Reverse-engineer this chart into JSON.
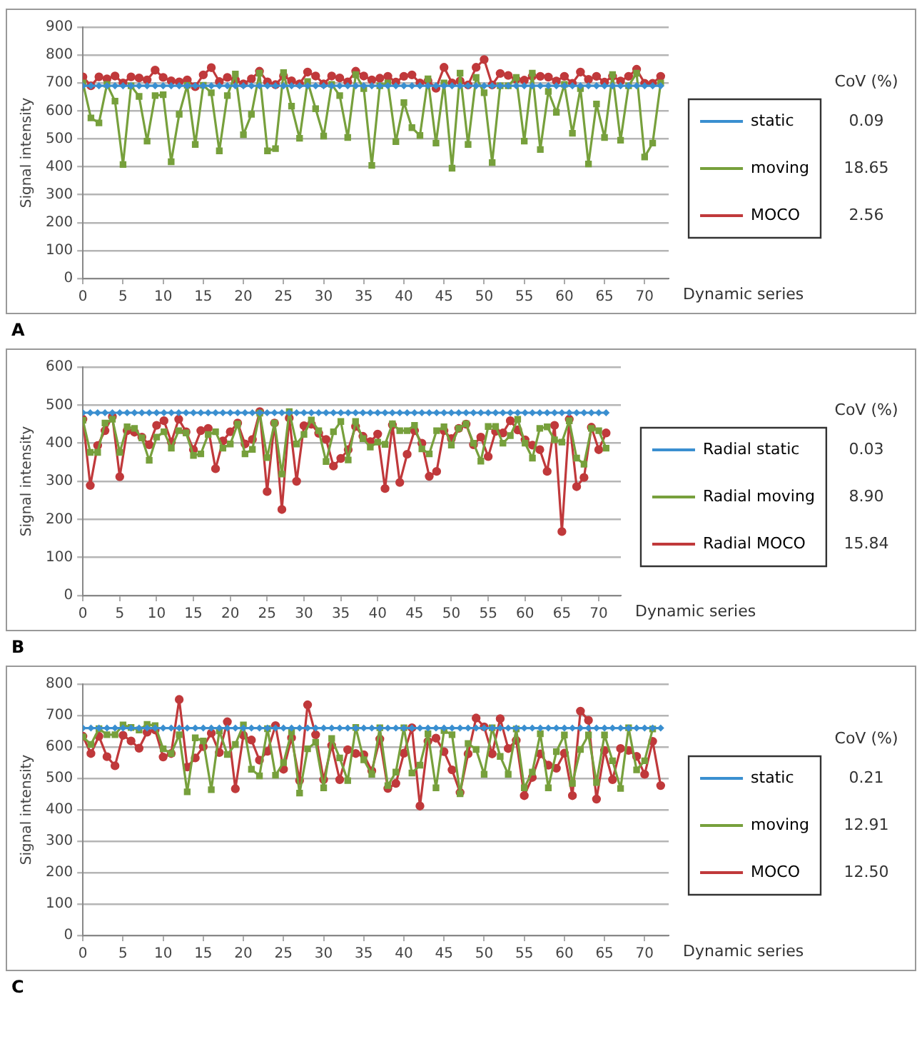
{
  "chart_data": [
    {
      "type": "line",
      "ylabel": "Signal intensity",
      "xlabel": "Dynamic series",
      "xlim": [
        0,
        73
      ],
      "xticks": [
        0,
        5,
        10,
        15,
        20,
        25,
        30,
        35,
        40,
        45,
        50,
        55,
        60,
        65,
        70
      ],
      "ylim": [
        0,
        900
      ],
      "yticks": [
        0,
        100,
        200,
        300,
        400,
        500,
        600,
        700,
        800,
        900
      ],
      "grid": "y",
      "legend": "right",
      "annotations": [
        "CoV (%)",
        "0.09",
        "18.65",
        "2.56",
        "A"
      ],
      "x": [
        0,
        1,
        2,
        3,
        4,
        5,
        6,
        7,
        8,
        9,
        10,
        11,
        12,
        13,
        14,
        15,
        16,
        17,
        18,
        19,
        20,
        21,
        22,
        23,
        24,
        25,
        26,
        27,
        28,
        29,
        30,
        31,
        32,
        33,
        34,
        35,
        36,
        37,
        38,
        39,
        40,
        41,
        42,
        43,
        44,
        45,
        46,
        47,
        48,
        49,
        50,
        51,
        52,
        53,
        54,
        55,
        56,
        57,
        58,
        59,
        60,
        61,
        62,
        63,
        64,
        65,
        66,
        67,
        68,
        69,
        70,
        71,
        72
      ],
      "series": [
        {
          "name": "static",
          "color": "#3a8fd0",
          "marker": "diamond",
          "values": [
            690,
            690,
            690,
            690,
            690,
            690,
            690,
            690,
            690,
            690,
            690,
            690,
            690,
            690,
            690,
            690,
            690,
            690,
            690,
            690,
            690,
            690,
            690,
            690,
            690,
            690,
            690,
            690,
            690,
            690,
            690,
            690,
            690,
            690,
            690,
            690,
            690,
            690,
            690,
            690,
            690,
            690,
            690,
            690,
            690,
            690,
            690,
            690,
            690,
            690,
            690,
            690,
            690,
            690,
            690,
            690,
            690,
            690,
            690,
            690,
            690,
            690,
            690,
            690,
            690,
            690,
            690,
            690,
            690,
            690,
            690,
            690,
            690
          ]
        },
        {
          "name": "moving",
          "color": "#77a03c",
          "marker": "square",
          "values": [
            700,
            575,
            557,
            695,
            635,
            408,
            690,
            652,
            492,
            655,
            658,
            418,
            588,
            692,
            480,
            692,
            665,
            457,
            655,
            732,
            515,
            588,
            735,
            457,
            465,
            737,
            617,
            502,
            705,
            608,
            510,
            695,
            655,
            505,
            730,
            680,
            405,
            690,
            700,
            490,
            630,
            540,
            512,
            715,
            485,
            700,
            395,
            735,
            480,
            720,
            665,
            415,
            690,
            690,
            720,
            492,
            735,
            462,
            670,
            595,
            695,
            520,
            680,
            410,
            625,
            505,
            730,
            495,
            690,
            735,
            435,
            485,
            700
          ]
        },
        {
          "name": "MOCO",
          "color": "#c0393b",
          "marker": "circle",
          "values": [
            722,
            690,
            722,
            715,
            725,
            700,
            722,
            718,
            711,
            746,
            720,
            708,
            704,
            711,
            687,
            729,
            755,
            705,
            720,
            711,
            697,
            715,
            742,
            704,
            694,
            725,
            708,
            697,
            739,
            725,
            697,
            725,
            718,
            704,
            742,
            725,
            711,
            717,
            724,
            703,
            724,
            729,
            700,
            707,
            681,
            756,
            700,
            707,
            693,
            756,
            784,
            693,
            734,
            727,
            713,
            710,
            724,
            724,
            721,
            707,
            724,
            699,
            739,
            713,
            724,
            703,
            724,
            707,
            724,
            749,
            699,
            699,
            724
          ]
        }
      ]
    },
    {
      "type": "line",
      "ylabel": "Signal intensity",
      "xlabel": "Dynamic series",
      "xlim": [
        0,
        73
      ],
      "xticks": [
        0,
        5,
        10,
        15,
        20,
        25,
        30,
        35,
        40,
        45,
        50,
        55,
        60,
        65,
        70
      ],
      "ylim": [
        0,
        600
      ],
      "yticks": [
        0,
        100,
        200,
        300,
        400,
        500,
        600
      ],
      "grid": "y",
      "legend": "right",
      "annotations": [
        "CoV (%)",
        "0.03",
        "8.90",
        "15.84",
        "B"
      ],
      "x": [
        0,
        1,
        2,
        3,
        4,
        5,
        6,
        7,
        8,
        9,
        10,
        11,
        12,
        13,
        14,
        15,
        16,
        17,
        18,
        19,
        20,
        21,
        22,
        23,
        24,
        25,
        26,
        27,
        28,
        29,
        30,
        31,
        32,
        33,
        34,
        35,
        36,
        37,
        38,
        39,
        40,
        41,
        42,
        43,
        44,
        45,
        46,
        47,
        48,
        49,
        50,
        51,
        52,
        53,
        54,
        55,
        56,
        57,
        58,
        59,
        60,
        61,
        62,
        63,
        64,
        65,
        66,
        67,
        68,
        69,
        70,
        71
      ],
      "series": [
        {
          "name": "Radial static",
          "color": "#3a8fd0",
          "marker": "diamond",
          "values": [
            480,
            480,
            480,
            480,
            480,
            480,
            480,
            480,
            480,
            480,
            480,
            480,
            480,
            480,
            480,
            480,
            480,
            480,
            480,
            480,
            480,
            480,
            480,
            480,
            480,
            480,
            480,
            480,
            480,
            480,
            480,
            480,
            480,
            480,
            480,
            480,
            480,
            480,
            480,
            480,
            480,
            480,
            480,
            480,
            480,
            480,
            480,
            480,
            480,
            480,
            480,
            480,
            480,
            480,
            480,
            480,
            480,
            480,
            480,
            480,
            480,
            480,
            480,
            480,
            480,
            480,
            480,
            480,
            480,
            480,
            480,
            480
          ]
        },
        {
          "name": "Radial moving",
          "color": "#77a03c",
          "marker": "square",
          "values": [
            460,
            376,
            376,
            453,
            463,
            376,
            443,
            439,
            414,
            355,
            416,
            430,
            387,
            433,
            427,
            368,
            372,
            423,
            430,
            387,
            398,
            450,
            372,
            384,
            479,
            362,
            453,
            319,
            483,
            398,
            423,
            461,
            433,
            352,
            430,
            457,
            356,
            457,
            412,
            390,
            403,
            397,
            451,
            433,
            433,
            447,
            385,
            372,
            433,
            443,
            395,
            439,
            451,
            400,
            353,
            444,
            444,
            400,
            420,
            463,
            400,
            361,
            439,
            443,
            409,
            403,
            459,
            361,
            345,
            439,
            433,
            387
          ]
        },
        {
          "name": "Radial MOCO",
          "color": "#c0393b",
          "marker": "circle",
          "values": [
            463,
            289,
            394,
            433,
            470,
            312,
            433,
            429,
            416,
            396,
            447,
            459,
            403,
            463,
            430,
            383,
            433,
            439,
            333,
            406,
            430,
            453,
            398,
            410,
            483,
            273,
            453,
            226,
            466,
            300,
            446,
            450,
            426,
            410,
            340,
            360,
            383,
            444,
            418,
            404,
            424,
            281,
            448,
            297,
            371,
            433,
            400,
            313,
            326,
            433,
            412,
            439,
            450,
            396,
            416,
            365,
            431,
            427,
            459,
            435,
            409,
            395,
            383,
            326,
            447,
            168,
            463,
            286,
            310,
            442,
            383,
            427
          ]
        }
      ]
    },
    {
      "type": "line",
      "ylabel": "Signal intensity",
      "xlabel": "Dynamic series",
      "xlim": [
        0,
        73
      ],
      "xticks": [
        0,
        5,
        10,
        15,
        20,
        25,
        30,
        35,
        40,
        45,
        50,
        55,
        60,
        65,
        70
      ],
      "ylim": [
        0,
        800
      ],
      "yticks": [
        0,
        100,
        200,
        300,
        400,
        500,
        600,
        700,
        800
      ],
      "grid": "y",
      "legend": "right",
      "annotations": [
        "CoV (%)",
        "0.21",
        "12.91",
        "12.50",
        "C"
      ],
      "x": [
        0,
        1,
        2,
        3,
        4,
        5,
        6,
        7,
        8,
        9,
        10,
        11,
        12,
        13,
        14,
        15,
        16,
        17,
        18,
        19,
        20,
        21,
        22,
        23,
        24,
        25,
        26,
        27,
        28,
        29,
        30,
        31,
        32,
        33,
        34,
        35,
        36,
        37,
        38,
        39,
        40,
        41,
        42,
        43,
        44,
        45,
        46,
        47,
        48,
        49,
        50,
        51,
        52,
        53,
        54,
        55,
        56,
        57,
        58,
        59,
        60,
        61,
        62,
        63,
        64,
        65,
        66,
        67,
        68,
        69,
        70,
        71,
        72
      ],
      "series": [
        {
          "name": "static",
          "color": "#3a8fd0",
          "marker": "diamond",
          "values": [
            660,
            660,
            660,
            660,
            660,
            660,
            660,
            660,
            660,
            660,
            660,
            660,
            660,
            660,
            660,
            660,
            660,
            660,
            660,
            660,
            660,
            660,
            660,
            660,
            660,
            660,
            660,
            660,
            660,
            660,
            660,
            660,
            660,
            660,
            660,
            660,
            660,
            660,
            660,
            660,
            660,
            660,
            660,
            660,
            660,
            660,
            660,
            660,
            660,
            660,
            660,
            660,
            660,
            660,
            660,
            660,
            660,
            660,
            660,
            660,
            660,
            660,
            660,
            660,
            660,
            660,
            660,
            660,
            660,
            660,
            660,
            660,
            660
          ]
        },
        {
          "name": "moving",
          "color": "#77a03c",
          "marker": "square",
          "values": [
            632,
            608,
            658,
            639,
            639,
            670,
            662,
            654,
            672,
            668,
            594,
            579,
            639,
            457,
            629,
            619,
            464,
            651,
            576,
            608,
            670,
            529,
            508,
            658,
            510,
            550,
            648,
            453,
            594,
            615,
            470,
            627,
            565,
            493,
            662,
            559,
            513,
            661,
            477,
            520,
            661,
            517,
            542,
            642,
            470,
            652,
            639,
            451,
            611,
            592,
            513,
            661,
            570,
            513,
            657,
            470,
            520,
            642,
            470,
            585,
            638,
            484,
            592,
            638,
            487,
            638,
            556,
            468,
            661,
            527,
            556,
            657,
            null
          ]
        },
        {
          "name": "MOCO",
          "color": "#c0393b",
          "marker": "circle",
          "values": [
            634,
            579,
            634,
            569,
            540,
            637,
            619,
            596,
            647,
            654,
            568,
            579,
            751,
            536,
            565,
            601,
            644,
            582,
            680,
            467,
            637,
            622,
            558,
            586,
            668,
            529,
            629,
            493,
            734,
            639,
            496,
            605,
            496,
            591,
            579,
            575,
            524,
            625,
            468,
            484,
            580,
            661,
            412,
            618,
            628,
            585,
            527,
            455,
            578,
            692,
            664,
            578,
            690,
            595,
            621,
            445,
            503,
            578,
            542,
            532,
            580,
            445,
            714,
            685,
            434,
            589,
            496,
            595,
            589,
            570,
            513,
            618,
            477
          ]
        }
      ]
    }
  ]
}
